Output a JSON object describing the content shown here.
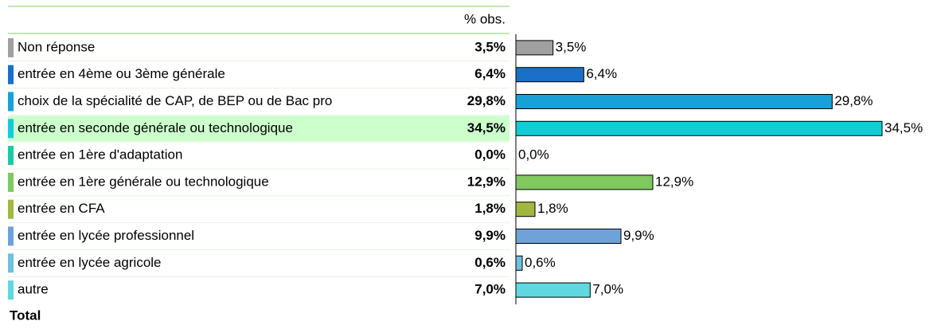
{
  "chart_data": {
    "type": "bar",
    "orientation": "horizontal",
    "column_header": "% obs.",
    "footer": "Total",
    "categories": [
      "Non réponse",
      "entrée en 4ème ou 3ème générale",
      "choix de la spécialité de CAP, de BEP ou de Bac pro",
      "entrée en seconde générale ou technologique",
      "entrée en 1ère d'adaptation",
      "entrée en 1ère générale ou technologique",
      "entrée en CFA",
      "entrée en lycée professionnel",
      "entrée en lycée agricole",
      "autre"
    ],
    "values": [
      3.5,
      6.4,
      29.8,
      34.5,
      0.0,
      12.9,
      1.8,
      9.9,
      0.6,
      7.0
    ],
    "value_labels": [
      "3,5%",
      "6,4%",
      "29,8%",
      "34,5%",
      "0,0%",
      "12,9%",
      "1,8%",
      "9,9%",
      "0,6%",
      "7,0%"
    ],
    "colors": [
      "#a0a0a0",
      "#1a6fc8",
      "#18a0d8",
      "#10cdd8",
      "#20c8a0",
      "#80c860",
      "#a0b840",
      "#6ea2d8",
      "#70c0e0",
      "#60d8e0"
    ],
    "highlight_index": 3
  }
}
